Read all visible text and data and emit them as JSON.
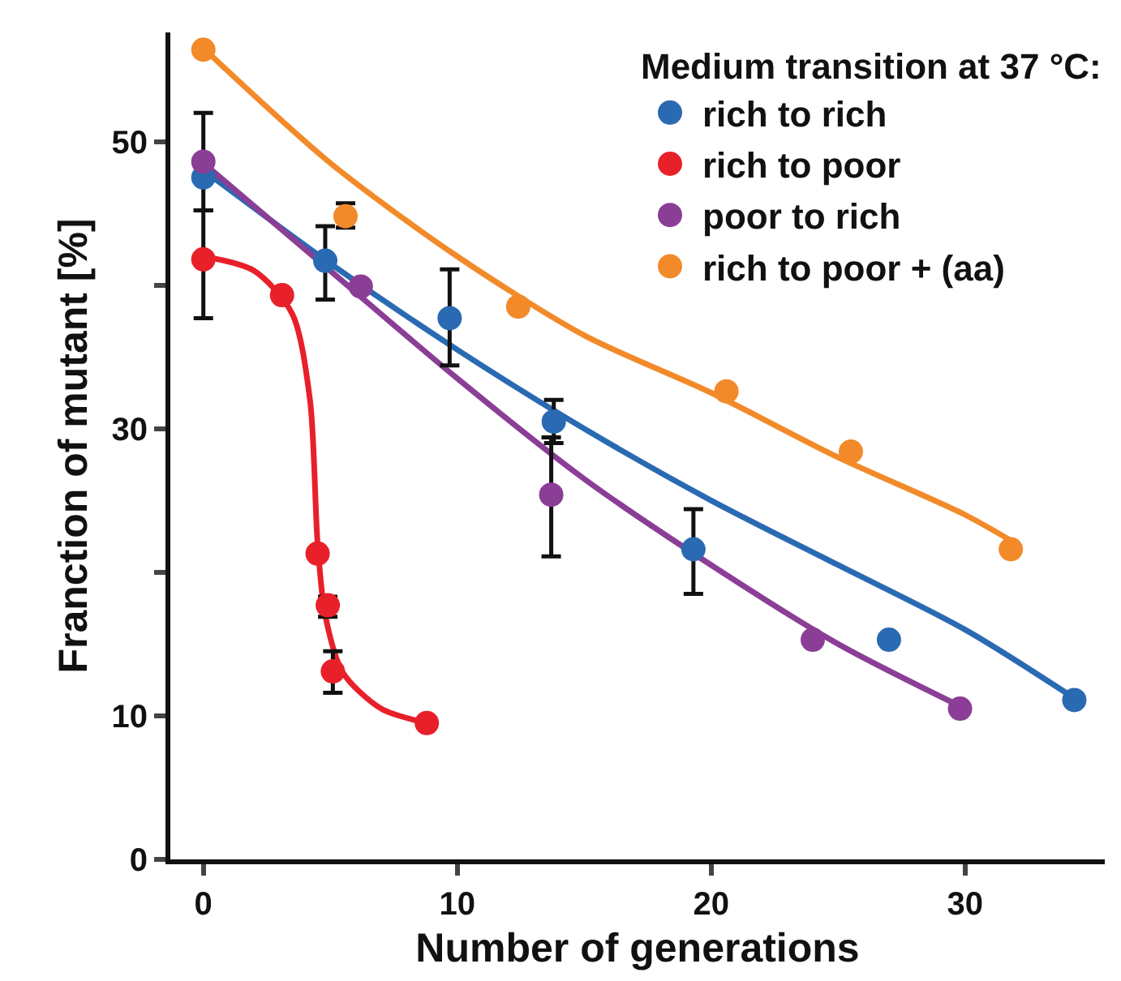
{
  "chart_data": {
    "type": "scatter",
    "xlabel": "Number of generations",
    "ylabel": "Franction of mutant [%]",
    "legend_title": "Medium transition at 37 °C:",
    "legend": "top right",
    "grid": false,
    "xlim": [
      -1.3,
      35.5
    ],
    "xticks": [
      0,
      10,
      20,
      30
    ],
    "ylim": [
      0,
      57.6
    ],
    "yticks": [
      0,
      10,
      {
        "value": 20,
        "label": null
      },
      30,
      {
        "value": 40,
        "label": null
      },
      50
    ],
    "series": [
      {
        "name": "rich to rich",
        "color": "#2a6ab3",
        "marker": "circle",
        "x": [
          0,
          4.8,
          9.7,
          13.8,
          19.3,
          27.0,
          34.3
        ],
        "values": [
          47.5,
          41.7,
          37.7,
          30.5,
          21.6,
          15.3,
          11.1
        ],
        "errors": [
          [
            45.2,
            52
          ],
          [
            39,
            44.1
          ],
          [
            34.4,
            41.1
          ],
          [
            29,
            32
          ],
          [
            18.5,
            24.4
          ],
          null,
          null
        ]
      },
      {
        "name": "rich to poor",
        "color": "#e8202a",
        "marker": "circle",
        "x": [
          0,
          3.1,
          4.5,
          4.9,
          5.1,
          8.8
        ],
        "values": [
          41.8,
          39.3,
          21.3,
          17.7,
          13.1,
          9.5
        ],
        "errors": [
          [
            37.7,
            45.2
          ],
          null,
          null,
          [
            16.9,
            18.3
          ],
          [
            11.6,
            14.5
          ],
          null
        ]
      },
      {
        "name": "poor to rich",
        "color": "#8b3e96",
        "marker": "circle",
        "x": [
          0,
          6.2,
          13.7,
          24.0,
          29.8
        ],
        "values": [
          48.6,
          39.9,
          25.4,
          15.3,
          10.5
        ],
        "errors": [
          null,
          null,
          [
            21.1,
            29.4
          ],
          null,
          null
        ]
      },
      {
        "name": "rich to poor + (aa)",
        "color": "#f28a2a",
        "marker": "circle",
        "x": [
          0,
          5.6,
          12.4,
          20.6,
          25.5,
          31.8
        ],
        "values": [
          56.4,
          44.8,
          38.5,
          32.6,
          28.4,
          21.6
        ],
        "errors": [
          null,
          [
            44,
            45.7
          ],
          null,
          null,
          null,
          null
        ]
      },
      {
        "type": "line",
        "color": "#2a6ab3",
        "x": [
          0,
          5,
          10,
          15,
          20,
          25,
          30,
          34.5
        ],
        "values": [
          48,
          41.5,
          35.5,
          30,
          25,
          20.5,
          16,
          11
        ]
      },
      {
        "type": "line",
        "color": "#e8202a",
        "x": [
          0,
          2,
          3.5,
          4.2,
          4.5,
          4.8,
          5.5,
          7,
          8.8
        ],
        "values": [
          42,
          41,
          38,
          32,
          22,
          17,
          13,
          10.5,
          9.5
        ]
      },
      {
        "type": "line",
        "color": "#8b3e96",
        "x": [
          0,
          5,
          10,
          15,
          20,
          25,
          30
        ],
        "values": [
          48.5,
          41,
          33.5,
          26.5,
          20.5,
          15,
          10.5
        ]
      },
      {
        "type": "line",
        "color": "#f28a2a",
        "x": [
          0,
          5,
          10,
          15,
          20,
          25,
          30,
          32
        ],
        "values": [
          56.5,
          48.5,
          42,
          36.5,
          32.5,
          28,
          24,
          22
        ]
      }
    ]
  }
}
